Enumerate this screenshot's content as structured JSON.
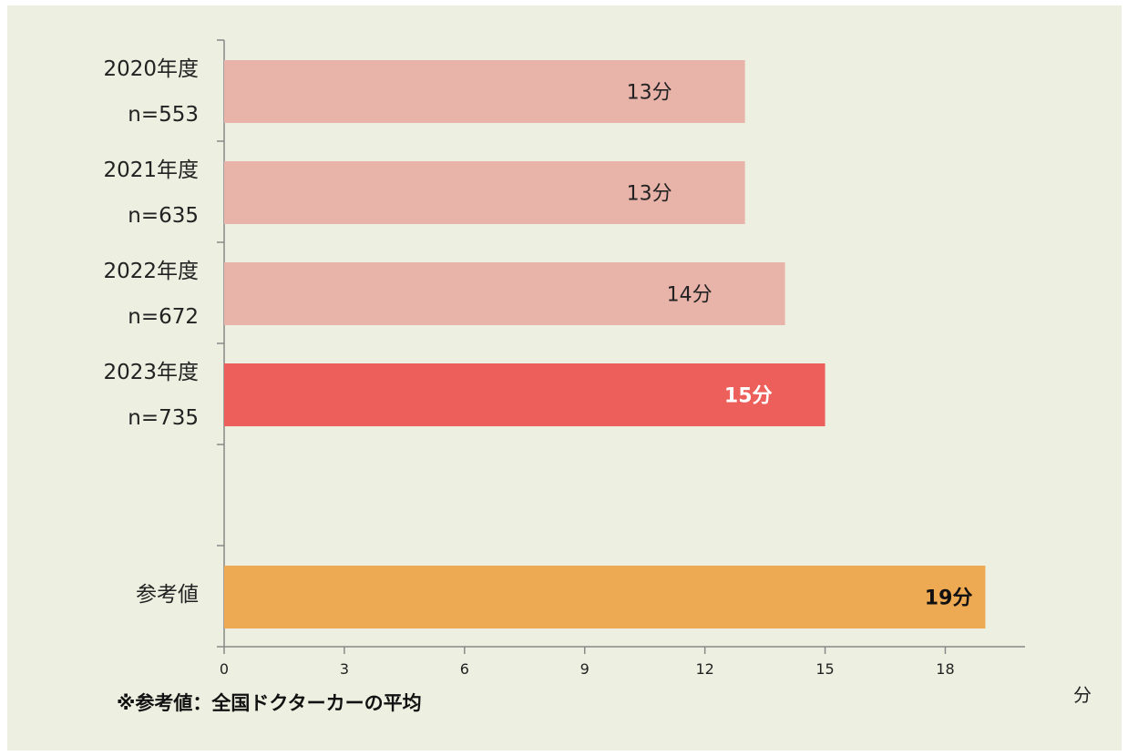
{
  "chart_data": {
    "type": "bar",
    "orientation": "horizontal",
    "categories": [
      "2020年度\nn=553",
      "2021年度\nn=635",
      "2022年度\nn=672",
      "2023年度\nn=735",
      "",
      "参考値"
    ],
    "values": [
      13,
      13,
      14,
      15,
      null,
      19
    ],
    "data_labels": [
      "13分",
      "13分",
      "14分",
      "15分",
      "",
      "19分"
    ],
    "bar_colors": [
      "#e8b3a8",
      "#e8b3a8",
      "#e8b3a8",
      "#ec5f5b",
      null,
      "#eeaa53"
    ],
    "label_styles": [
      "normal",
      "normal",
      "normal",
      "bold-white",
      "",
      "bold-black"
    ],
    "xlim": [
      0,
      20
    ],
    "xticks": [
      0,
      3,
      6,
      9,
      12,
      15,
      18
    ],
    "x_unit": "分",
    "grid": false,
    "footnote": "※参考値：全国ドクターカーの平均"
  }
}
